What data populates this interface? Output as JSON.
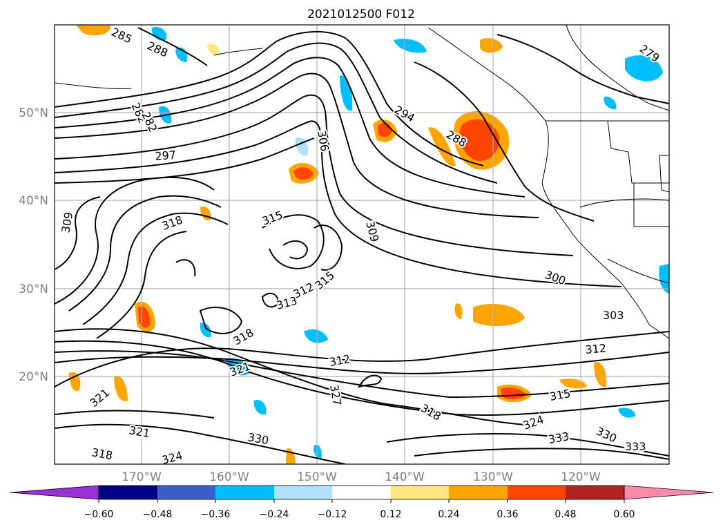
{
  "title": "2021012500 F012",
  "map": {
    "lat_ticks": [
      "50°N",
      "40°N",
      "30°N",
      "20°N"
    ],
    "lon_ticks": [
      "170°W",
      "160°W",
      "150°W",
      "140°W",
      "130°W",
      "120°W"
    ],
    "contour_labels": [
      "285",
      "288",
      "282",
      "282",
      "297",
      "306",
      "294",
      "288",
      "279",
      "309",
      "318",
      "315",
      "309",
      "300",
      "303",
      "313",
      "312",
      "315",
      "318",
      "312",
      "312",
      "321",
      "327",
      "318",
      "315",
      "324",
      "321",
      "330",
      "333",
      "330",
      "333",
      "318",
      "324",
      "321"
    ]
  },
  "colorbar": {
    "ticks": [
      "−0.60",
      "−0.48",
      "−0.36",
      "−0.24",
      "−0.12",
      "0.12",
      "0.24",
      "0.36",
      "0.48",
      "0.60"
    ],
    "colors": [
      "#9b30d9",
      "#00008b",
      "#3a5fcd",
      "#00bfff",
      "#b0e2ff",
      "#ffffff",
      "#ffe680",
      "#ffa500",
      "#ff4500",
      "#b22222",
      "#ff88aa"
    ]
  }
}
